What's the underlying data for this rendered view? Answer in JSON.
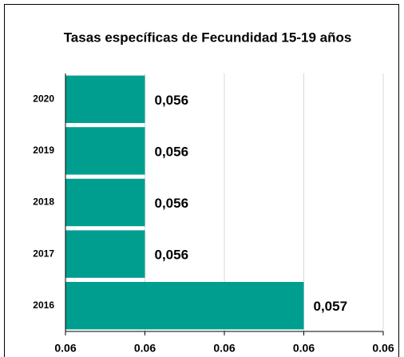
{
  "chart_data": {
    "type": "barh",
    "title": "Tasas específicas de Fecundidad 15-19 años",
    "categories": [
      "2020",
      "2019",
      "2018",
      "2017",
      "2016"
    ],
    "values": [
      0.056,
      0.056,
      0.056,
      0.056,
      0.057
    ],
    "value_labels": [
      "0,056",
      "0,056",
      "0,056",
      "0,056",
      "0,057"
    ],
    "color": "#009e8f",
    "xlim": [
      0.0555,
      0.0575
    ],
    "xticks": [
      {
        "value": 0.0555,
        "label": "0.06"
      },
      {
        "value": 0.056,
        "label": "0.06"
      },
      {
        "value": 0.0565,
        "label": "0.06"
      },
      {
        "value": 0.057,
        "label": "0.06"
      },
      {
        "value": 0.0575,
        "label": "0.06"
      }
    ],
    "grid": true
  }
}
